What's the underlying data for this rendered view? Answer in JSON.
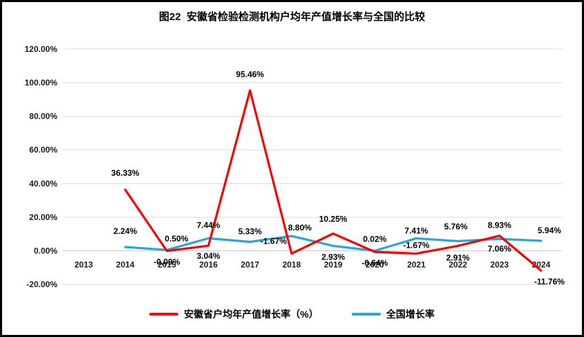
{
  "title": "图22  安徽省检验检测机构户均年产值增长率与全国的比较",
  "chart_data": {
    "type": "line",
    "title": "图22 安徽省检验检测机构户均年产值增长率与全国的比较",
    "categories": [
      "2013",
      "2014",
      "2015",
      "2016",
      "2017",
      "2018",
      "2019",
      "2020",
      "2021",
      "2022",
      "2023",
      "2024"
    ],
    "series": [
      {
        "name": "安徽省户均年产值增长率（%）",
        "color": "#FF0000",
        "start_category": "2014",
        "values": [
          36.33,
          -0.09,
          3.04,
          95.46,
          -1.67,
          10.25,
          -0.64,
          -1.67,
          2.91,
          8.93,
          -11.76
        ],
        "labels": [
          "36.33%",
          "-0.09%",
          "3.04%",
          "95.46%",
          "-1.67%",
          "10.25%",
          "-0.64%",
          "-1.67%",
          "2.91%",
          "8.93%",
          "-11.76%"
        ],
        "label_offsets": [
          [
            0,
            -24
          ],
          [
            0,
            16
          ],
          [
            0,
            15
          ],
          [
            0,
            -23
          ],
          [
            -26,
            -18
          ],
          [
            0,
            -21
          ],
          [
            0,
            16
          ],
          [
            0,
            -12
          ],
          [
            0,
            17
          ],
          [
            0,
            -15
          ],
          [
            12,
            16
          ]
        ]
      },
      {
        "name": "全国增长率",
        "color": "#27A5DC",
        "start_category": "2014",
        "values": [
          2.24,
          0.5,
          7.44,
          5.33,
          8.8,
          2.93,
          0.02,
          7.41,
          5.76,
          7.06,
          5.94
        ],
        "labels": [
          "2.24%",
          "0.50%",
          "7.44%",
          "5.33%",
          "8.80%",
          "2.93%",
          "0.02%",
          "7.41%",
          "5.76%",
          "7.06%",
          "5.94%"
        ],
        "label_offsets": [
          [
            0,
            -23
          ],
          [
            14,
            -16
          ],
          [
            0,
            -19
          ],
          [
            0,
            -15
          ],
          [
            12,
            -12
          ],
          [
            0,
            16
          ],
          [
            0,
            -17
          ],
          [
            0,
            -11
          ],
          [
            -3,
            -21
          ],
          [
            0,
            14
          ],
          [
            12,
            -15
          ]
        ]
      }
    ],
    "ylim": [
      -20,
      120
    ],
    "ytick_step": 20,
    "ytick_labels": [
      "120.00%",
      "100.00%",
      "80.00%",
      "60.00%",
      "40.00%",
      "20.00%",
      "0.00%",
      "-20.00%"
    ],
    "grid": true,
    "legend_position": "bottom"
  },
  "legend": {
    "items": [
      {
        "label": "安徽省户均年产值增长率（%）",
        "color": "#FF0000"
      },
      {
        "label": "全国增长率",
        "color": "#27A5DC"
      }
    ]
  }
}
